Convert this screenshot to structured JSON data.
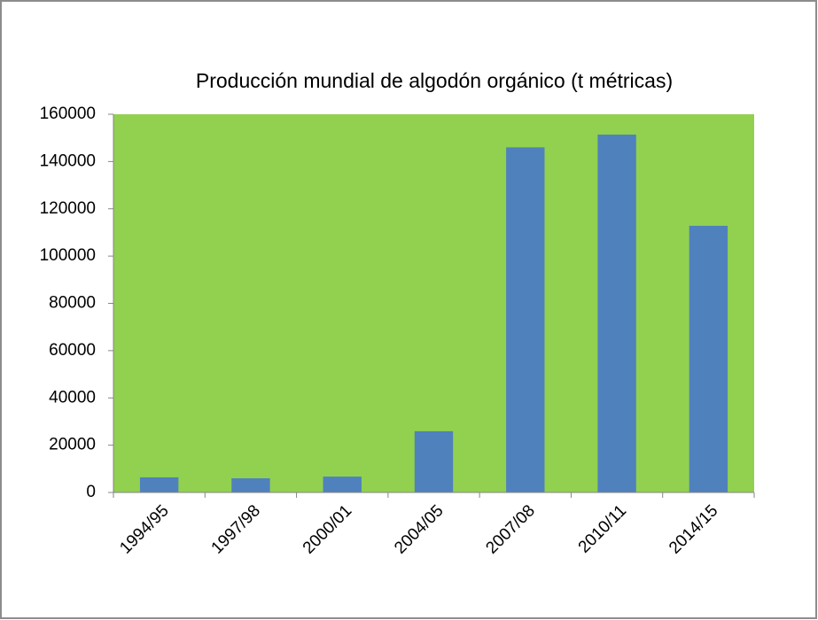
{
  "chart_data": {
    "type": "bar",
    "title": "Producción mundial de algodón orgánico (t métricas)",
    "categories": [
      "1994/95",
      "1997/98",
      "2000/01",
      "2004/05",
      "2007/08",
      "2010/11",
      "2014/15"
    ],
    "values": [
      6400,
      6000,
      6700,
      25900,
      146000,
      151400,
      112800
    ],
    "color": "#4f81bd",
    "plot_background": "#92d050",
    "ylim": [
      0,
      160000
    ],
    "yticks": [
      0,
      20000,
      40000,
      60000,
      80000,
      100000,
      120000,
      140000,
      160000
    ]
  }
}
